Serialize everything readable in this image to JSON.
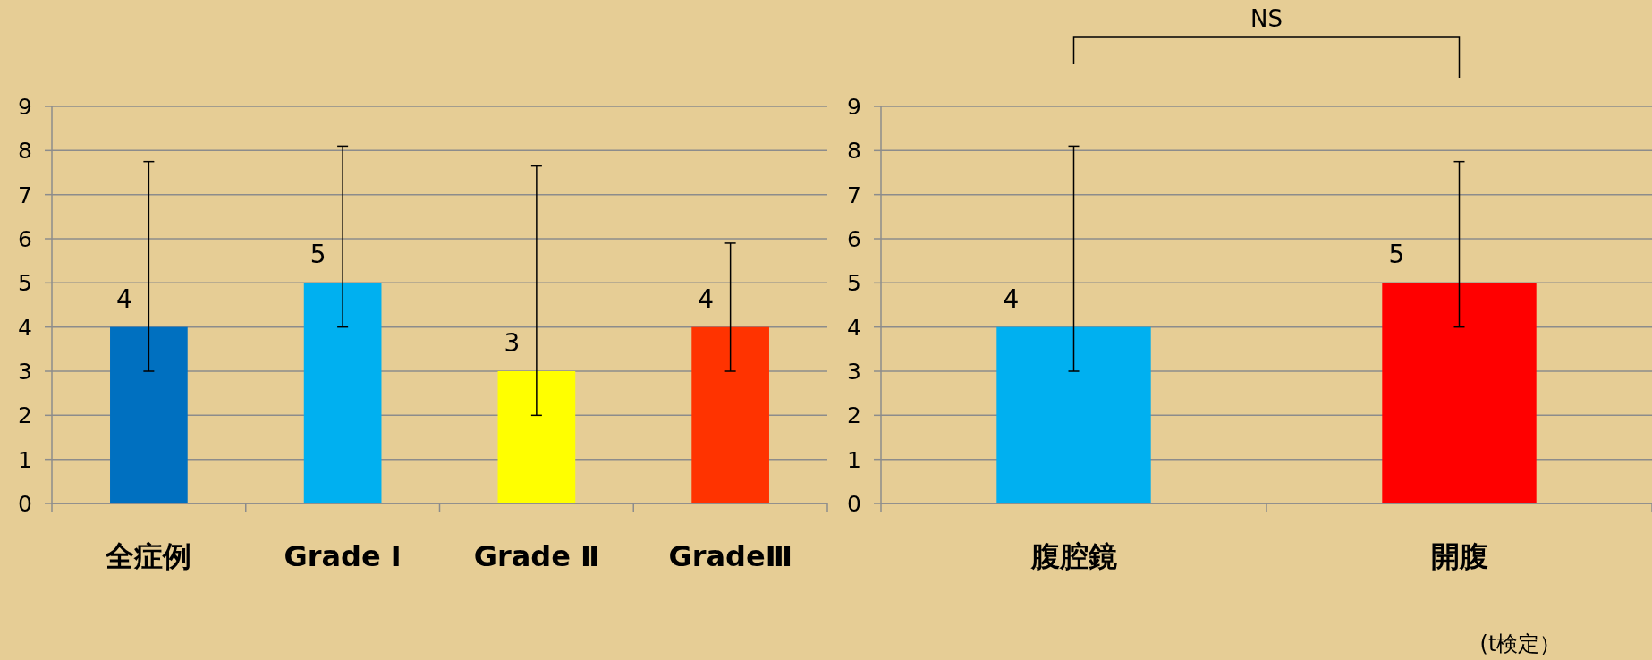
{
  "chart_data": [
    {
      "type": "bar",
      "categories": [
        "全症例",
        "Grade Ⅰ",
        "Grade Ⅱ",
        "GradeⅢ"
      ],
      "values": [
        4,
        5,
        3,
        4
      ],
      "colors": [
        "#0070c0",
        "#00b0f0",
        "#ffff00",
        "#ff3300"
      ],
      "errors": [
        [
          3,
          7.75
        ],
        [
          4,
          8.1
        ],
        [
          2,
          7.65
        ],
        [
          3,
          5.9
        ]
      ],
      "ylim": [
        0,
        9
      ],
      "yticks": [
        0,
        1,
        2,
        3,
        4,
        5,
        6,
        7,
        8,
        9
      ],
      "grid": "y",
      "data_labels": true
    },
    {
      "type": "bar",
      "categories": [
        "腹腔鏡",
        "開腹"
      ],
      "values": [
        4,
        5
      ],
      "colors": [
        "#00b0f0",
        "#ff0000"
      ],
      "errors": [
        [
          3,
          8.1
        ],
        [
          4,
          7.75
        ]
      ],
      "ylim": [
        0,
        9
      ],
      "yticks": [
        0,
        1,
        2,
        3,
        4,
        5,
        6,
        7,
        8,
        9
      ],
      "grid": "y",
      "data_labels": true,
      "annotations": [
        "NS",
        "(t検定）"
      ]
    }
  ]
}
